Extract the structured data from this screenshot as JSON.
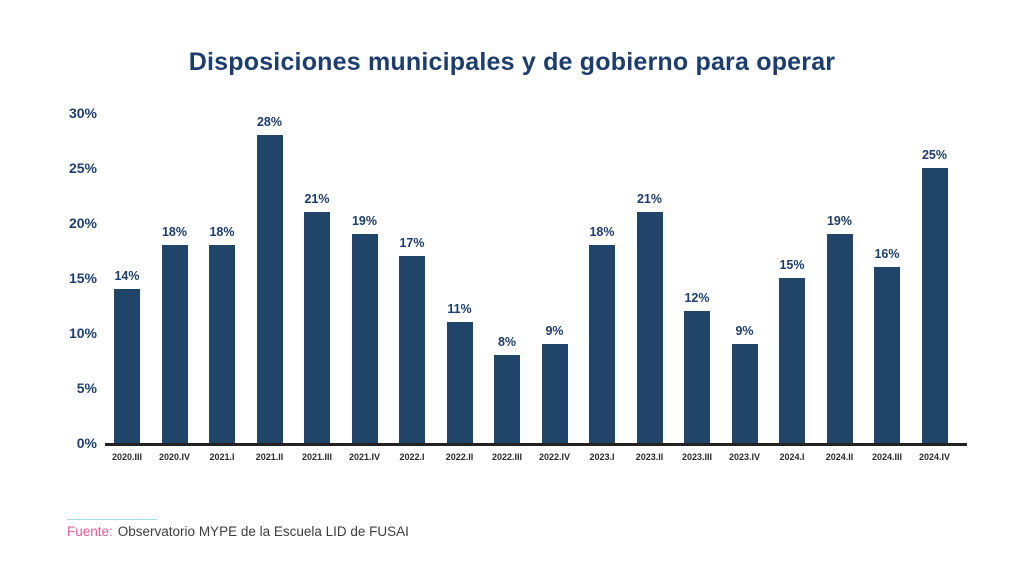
{
  "title": "Disposiciones municipales y de gobierno para operar",
  "chart_data": {
    "type": "bar",
    "title": "Disposiciones municipales y de gobierno para operar",
    "categories": [
      "2020.III",
      "2020.IV",
      "2021.I",
      "2021.II",
      "2021.III",
      "2021.IV",
      "2022.I",
      "2022.II",
      "2022.III",
      "2022.IV",
      "2023.I",
      "2023.II",
      "2023.III",
      "2023.IV",
      "2024.I",
      "2024.II",
      "2024.III",
      "2024.IV"
    ],
    "values": [
      14,
      18,
      18,
      28,
      21,
      19,
      17,
      11,
      8,
      9,
      18,
      21,
      12,
      9,
      15,
      19,
      16,
      25
    ],
    "value_suffix": "%",
    "xlabel": "",
    "ylabel": "",
    "ylim": [
      0,
      30
    ],
    "yticks": [
      30,
      25,
      20,
      15,
      10,
      5,
      0
    ],
    "ytick_suffix": "%",
    "grid": false,
    "legend": null,
    "bar_color": "#204568"
  },
  "colors": {
    "bar": "#204568",
    "title_text": "#1c3d6d",
    "axis_label_text": "#1d3f6f",
    "axis_line": "#222222",
    "source_accent": "#e7599f",
    "divider": "#a5d8e8",
    "background": "#ffffff"
  },
  "footer": {
    "source_label": "Fuente:",
    "source_text": "Observatorio MYPE de la Escuela LID de FUSAI"
  }
}
